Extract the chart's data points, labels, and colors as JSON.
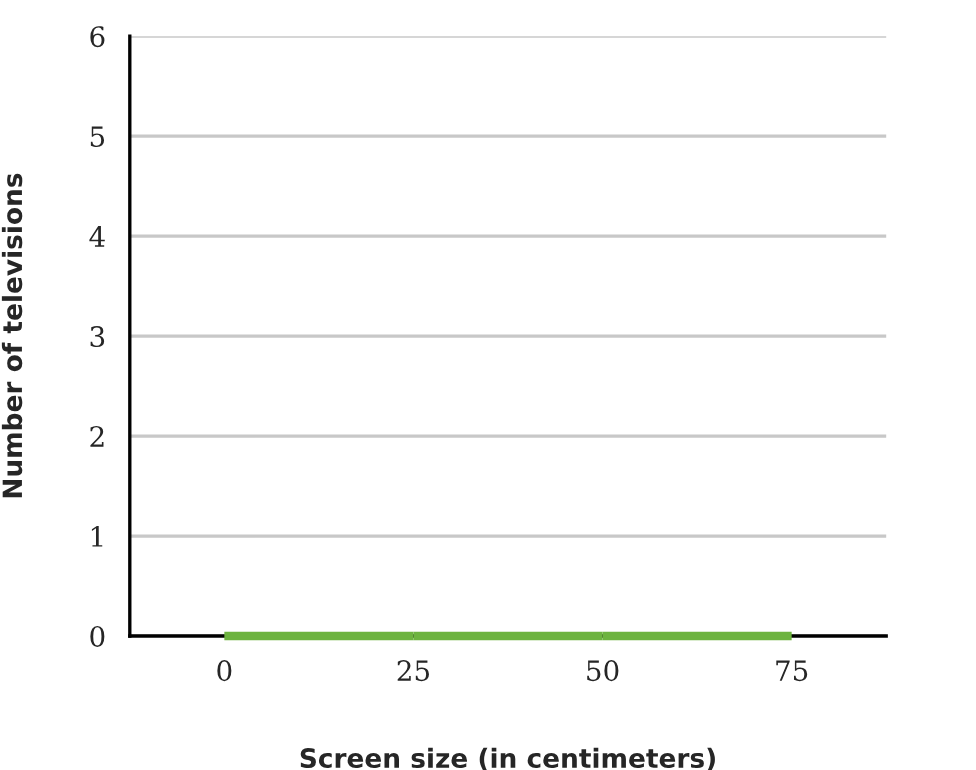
{
  "chart_data": {
    "type": "histogram",
    "xlabel": "Screen size (in centimeters)",
    "ylabel": "Number of televisions",
    "bins": [
      0,
      25,
      50,
      75
    ],
    "values": [
      0,
      0,
      0
    ],
    "color": "#6db33f",
    "xlim": [
      -12.5,
      87.5
    ],
    "xticks": [
      0,
      25,
      50,
      75
    ],
    "ylim": [
      0,
      6
    ],
    "yticks": [
      0,
      1,
      2,
      3,
      4,
      5,
      6
    ],
    "grid": "y"
  }
}
